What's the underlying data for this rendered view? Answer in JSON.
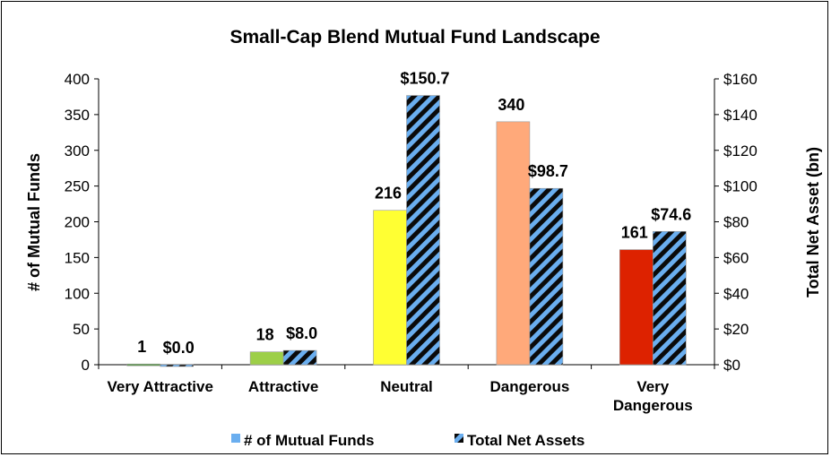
{
  "chart_data": {
    "type": "bar",
    "title": "Small-Cap Blend Mutual Fund Landscape",
    "categories": [
      "Very Attractive",
      "Attractive",
      "Neutral",
      "Dangerous",
      "Very Dangerous"
    ],
    "category_label_lines": [
      [
        "Very Attractive"
      ],
      [
        "Attractive"
      ],
      [
        "Neutral"
      ],
      [
        "Dangerous"
      ],
      [
        "Very",
        "Dangerous"
      ]
    ],
    "ylabel_left": "# of Mutual Funds",
    "ylabel_right": "Total Net Asset (bn)",
    "ylim_left": [
      0,
      400
    ],
    "ylim_right": [
      0,
      160
    ],
    "yticks_left": [
      "0",
      "50",
      "100",
      "150",
      "200",
      "250",
      "300",
      "350",
      "400"
    ],
    "yticks_right": [
      "$0",
      "$20",
      "$40",
      "$60",
      "$80",
      "$100",
      "$120",
      "$140",
      "$160"
    ],
    "series": [
      {
        "name": "# of Mutual Funds",
        "axis": "left",
        "values": [
          1,
          18,
          216,
          340,
          161
        ],
        "labels": [
          "1",
          "18",
          "216",
          "340",
          "161"
        ],
        "colors": [
          "#5f9a4f",
          "#9dcf48",
          "#ffff33",
          "#ffa97a",
          "#dd2200"
        ]
      },
      {
        "name": "Total Net Assets",
        "axis": "right",
        "values": [
          0.0,
          8.0,
          150.7,
          98.7,
          74.6
        ],
        "labels": [
          "$0.0",
          "$8.0",
          "$150.7",
          "$98.7",
          "$74.6"
        ],
        "pattern": "diagonal-stripes",
        "colors": [
          "#6aaeef",
          "#0a0a0a"
        ]
      }
    ],
    "grid": false,
    "legend_position": "bottom",
    "legend_entries": [
      "# of Mutual Funds",
      "Total Net Assets"
    ],
    "legend_marker_color": "#6aaeef"
  }
}
